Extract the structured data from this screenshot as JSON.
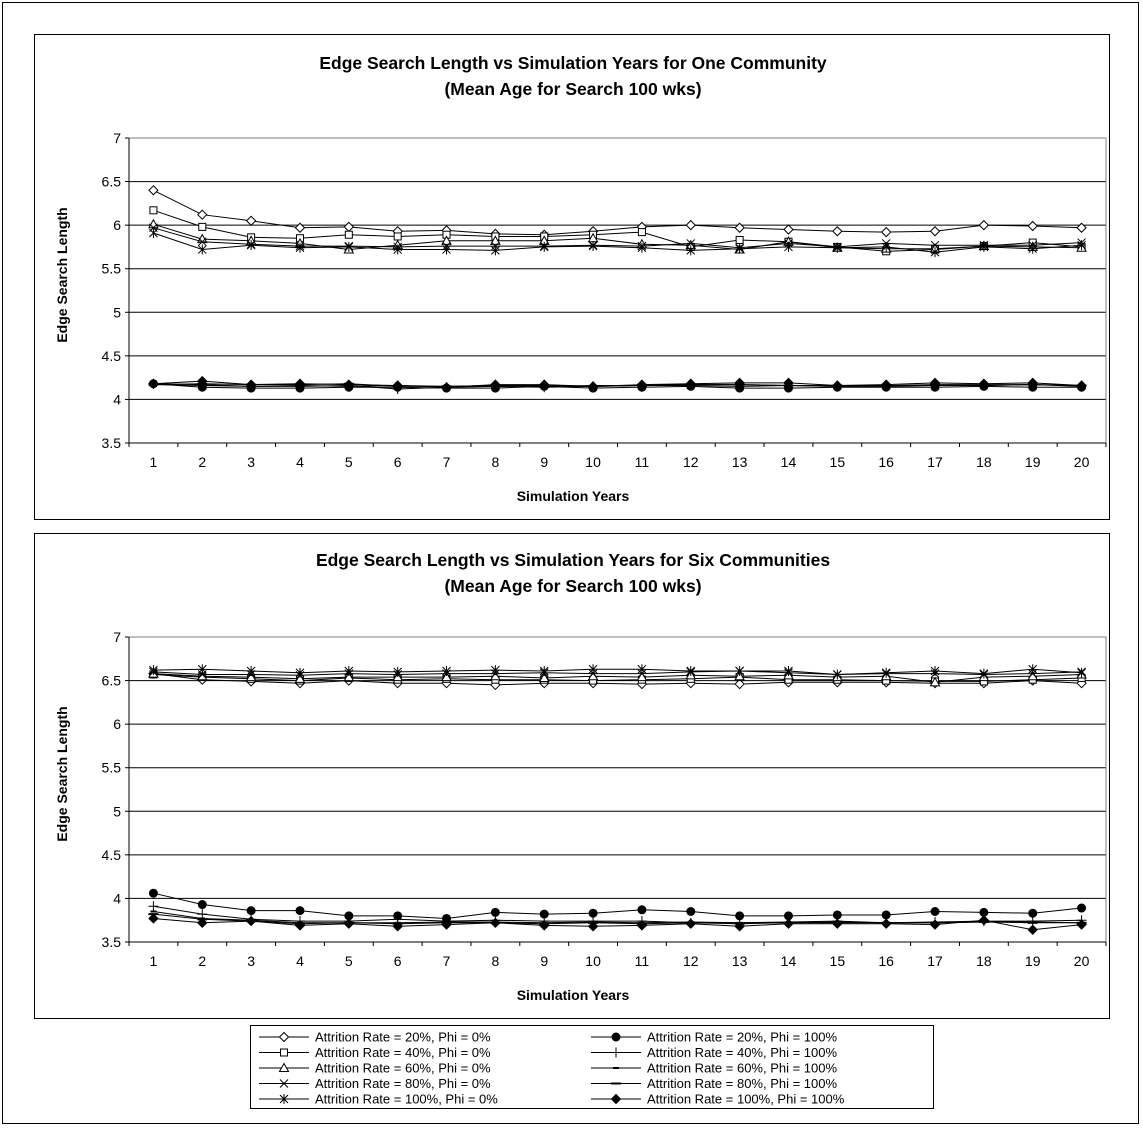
{
  "chart_data": [
    {
      "type": "line",
      "title_lines": [
        "Edge Search Length vs Simulation Years for One Community",
        "(Mean Age for Search 100 wks)"
      ],
      "xlabel": "Simulation Years",
      "ylabel": "Edge Search Length",
      "ylim": [
        3.5,
        7
      ],
      "yticks": [
        "3.5",
        "4",
        "4.5",
        "5",
        "5.5",
        "6",
        "6.5",
        "7"
      ],
      "categories": [
        "1",
        "2",
        "3",
        "4",
        "5",
        "6",
        "7",
        "8",
        "9",
        "10",
        "11",
        "12",
        "13",
        "14",
        "15",
        "16",
        "17",
        "18",
        "19",
        "20"
      ],
      "grid": "horizontal",
      "series": [
        {
          "name": "Attrition Rate = 20%, Phi = 0%",
          "marker": "diamond-open",
          "values": [
            6.4,
            6.12,
            6.05,
            5.97,
            5.98,
            5.93,
            5.94,
            5.9,
            5.89,
            5.93,
            5.98,
            6.0,
            5.97,
            5.95,
            5.93,
            5.92,
            5.93,
            6.0,
            5.99,
            5.97
          ]
        },
        {
          "name": "Attrition Rate = 40%, Phi = 0%",
          "marker": "square-open",
          "values": [
            6.17,
            5.98,
            5.86,
            5.85,
            5.89,
            5.87,
            5.89,
            5.87,
            5.87,
            5.89,
            5.92,
            5.75,
            5.83,
            5.81,
            5.75,
            5.7,
            5.72,
            5.76,
            5.8,
            5.75
          ]
        },
        {
          "name": "Attrition Rate = 60%, Phi = 0%",
          "marker": "triangle-open",
          "values": [
            6.01,
            5.84,
            5.82,
            5.79,
            5.72,
            5.77,
            5.82,
            5.82,
            5.82,
            5.85,
            5.78,
            5.77,
            5.72,
            5.81,
            5.74,
            5.73,
            5.73,
            5.76,
            5.75,
            5.74
          ]
        },
        {
          "name": "Attrition Rate = 80%, Phi = 0%",
          "marker": "x",
          "values": [
            5.97,
            5.81,
            5.78,
            5.76,
            5.76,
            5.75,
            5.76,
            5.76,
            5.76,
            5.77,
            5.76,
            5.79,
            5.74,
            5.79,
            5.75,
            5.79,
            5.77,
            5.77,
            5.77,
            5.8
          ]
        },
        {
          "name": "Attrition Rate = 100%, Phi = 0%",
          "marker": "asterisk",
          "values": [
            5.91,
            5.72,
            5.77,
            5.74,
            5.75,
            5.72,
            5.72,
            5.71,
            5.75,
            5.76,
            5.74,
            5.71,
            5.73,
            5.75,
            5.74,
            5.75,
            5.69,
            5.75,
            5.73,
            5.77
          ]
        },
        {
          "name": "Attrition Rate = 20%, Phi = 100%",
          "marker": "circle-filled",
          "values": [
            4.18,
            4.14,
            4.13,
            4.13,
            4.14,
            4.14,
            4.13,
            4.13,
            4.15,
            4.13,
            4.14,
            4.15,
            4.13,
            4.13,
            4.14,
            4.14,
            4.14,
            4.15,
            4.14,
            4.14
          ]
        },
        {
          "name": "Attrition Rate = 40%, Phi = 100%",
          "marker": "plus",
          "values": [
            4.18,
            4.17,
            4.15,
            4.15,
            4.16,
            4.12,
            4.14,
            4.15,
            4.14,
            4.15,
            4.16,
            4.16,
            4.15,
            4.16,
            4.15,
            4.15,
            4.16,
            4.16,
            4.17,
            4.16
          ]
        },
        {
          "name": "Attrition Rate = 60%, Phi = 100%",
          "marker": "dash-short",
          "values": [
            4.17,
            4.16,
            4.15,
            4.16,
            4.15,
            4.16,
            4.15,
            4.16,
            4.15,
            4.16,
            4.16,
            4.17,
            4.17,
            4.16,
            4.15,
            4.16,
            4.16,
            4.16,
            4.17,
            4.15
          ]
        },
        {
          "name": "Attrition Rate = 80%, Phi = 100%",
          "marker": "dash-long",
          "values": [
            4.17,
            4.18,
            4.17,
            4.17,
            4.18,
            4.15,
            4.15,
            4.16,
            4.16,
            4.15,
            4.16,
            4.17,
            4.17,
            4.16,
            4.16,
            4.16,
            4.17,
            4.17,
            4.17,
            4.16
          ]
        },
        {
          "name": "Attrition Rate = 100%, Phi = 100%",
          "marker": "diamond-filled",
          "values": [
            4.18,
            4.21,
            4.17,
            4.18,
            4.17,
            4.16,
            4.14,
            4.17,
            4.17,
            4.15,
            4.17,
            4.18,
            4.19,
            4.19,
            4.16,
            4.17,
            4.19,
            4.18,
            4.19,
            4.16
          ]
        }
      ]
    },
    {
      "type": "line",
      "title_lines": [
        "Edge Search Length vs Simulation Years for Six Communities",
        "(Mean Age for Search 100 wks)"
      ],
      "xlabel": "Simulation Years",
      "ylabel": "Edge Search Length",
      "ylim": [
        3.5,
        7
      ],
      "yticks": [
        "3.5",
        "4",
        "4.5",
        "5",
        "5.5",
        "6",
        "6.5",
        "7"
      ],
      "categories": [
        "1",
        "2",
        "3",
        "4",
        "5",
        "6",
        "7",
        "8",
        "9",
        "10",
        "11",
        "12",
        "13",
        "14",
        "15",
        "16",
        "17",
        "18",
        "19",
        "20"
      ],
      "grid": "horizontal",
      "series": [
        {
          "name": "Attrition Rate = 20%, Phi = 0%",
          "marker": "diamond-open",
          "values": [
            6.58,
            6.51,
            6.49,
            6.47,
            6.5,
            6.47,
            6.47,
            6.45,
            6.47,
            6.47,
            6.46,
            6.47,
            6.46,
            6.48,
            6.48,
            6.48,
            6.47,
            6.47,
            6.5,
            6.47
          ]
        },
        {
          "name": "Attrition Rate = 40%, Phi = 0%",
          "marker": "square-open",
          "values": [
            6.57,
            6.54,
            6.52,
            6.5,
            6.53,
            6.51,
            6.52,
            6.51,
            6.51,
            6.5,
            6.51,
            6.52,
            6.54,
            6.51,
            6.51,
            6.5,
            6.49,
            6.49,
            6.51,
            6.53
          ]
        },
        {
          "name": "Attrition Rate = 60%, Phi = 0%",
          "marker": "triangle-open",
          "values": [
            6.58,
            6.55,
            6.54,
            6.52,
            6.54,
            6.54,
            6.54,
            6.55,
            6.53,
            6.55,
            6.54,
            6.56,
            6.55,
            6.56,
            6.54,
            6.55,
            6.48,
            6.54,
            6.55,
            6.57
          ]
        },
        {
          "name": "Attrition Rate = 80%, Phi = 0%",
          "marker": "x",
          "values": [
            6.6,
            6.57,
            6.57,
            6.56,
            6.58,
            6.57,
            6.58,
            6.58,
            6.59,
            6.58,
            6.58,
            6.6,
            6.61,
            6.59,
            6.57,
            6.58,
            6.58,
            6.57,
            6.58,
            6.6
          ]
        },
        {
          "name": "Attrition Rate = 100%, Phi = 0%",
          "marker": "asterisk",
          "values": [
            6.62,
            6.63,
            6.61,
            6.59,
            6.61,
            6.6,
            6.61,
            6.62,
            6.61,
            6.63,
            6.63,
            6.61,
            6.61,
            6.61,
            6.57,
            6.59,
            6.61,
            6.58,
            6.63,
            6.59
          ]
        },
        {
          "name": "Attrition Rate = 20%, Phi = 100%",
          "marker": "circle-filled",
          "values": [
            4.06,
            3.93,
            3.86,
            3.86,
            3.8,
            3.8,
            3.77,
            3.84,
            3.82,
            3.83,
            3.87,
            3.85,
            3.8,
            3.8,
            3.81,
            3.81,
            3.85,
            3.84,
            3.83,
            3.89
          ]
        },
        {
          "name": "Attrition Rate = 40%, Phi = 100%",
          "marker": "plus",
          "values": [
            3.91,
            3.82,
            3.76,
            3.74,
            3.74,
            3.76,
            3.74,
            3.75,
            3.74,
            3.74,
            3.74,
            3.72,
            3.72,
            3.73,
            3.74,
            3.72,
            3.73,
            3.74,
            3.74,
            3.75
          ]
        },
        {
          "name": "Attrition Rate = 60%, Phi = 100%",
          "marker": "dash-short",
          "values": [
            3.85,
            3.77,
            3.75,
            3.72,
            3.72,
            3.72,
            3.73,
            3.73,
            3.72,
            3.73,
            3.72,
            3.73,
            3.72,
            3.72,
            3.72,
            3.72,
            3.72,
            3.73,
            3.73,
            3.72
          ]
        },
        {
          "name": "Attrition Rate = 80%, Phi = 100%",
          "marker": "dash-long",
          "values": [
            3.82,
            3.76,
            3.74,
            3.71,
            3.72,
            3.71,
            3.72,
            3.72,
            3.71,
            3.72,
            3.71,
            3.72,
            3.71,
            3.72,
            3.73,
            3.72,
            3.72,
            3.73,
            3.72,
            3.72
          ]
        },
        {
          "name": "Attrition Rate = 100%, Phi = 100%",
          "marker": "diamond-filled",
          "values": [
            3.77,
            3.72,
            3.74,
            3.69,
            3.71,
            3.68,
            3.7,
            3.72,
            3.69,
            3.68,
            3.69,
            3.71,
            3.68,
            3.71,
            3.71,
            3.71,
            3.7,
            3.75,
            3.64,
            3.7
          ]
        }
      ]
    }
  ],
  "legend": {
    "columns": 2,
    "entries": [
      {
        "series_index": 0,
        "label": "Attrition Rate = 20%, Phi = 0%"
      },
      {
        "series_index": 5,
        "label": "Attrition Rate = 20%, Phi = 100%"
      },
      {
        "series_index": 1,
        "label": "Attrition Rate = 40%, Phi = 0%"
      },
      {
        "series_index": 6,
        "label": "Attrition Rate = 40%, Phi = 100%"
      },
      {
        "series_index": 2,
        "label": "Attrition Rate = 60%, Phi = 0%"
      },
      {
        "series_index": 7,
        "label": "Attrition Rate = 60%, Phi = 100%"
      },
      {
        "series_index": 3,
        "label": "Attrition Rate = 80%, Phi = 0%"
      },
      {
        "series_index": 8,
        "label": "Attrition Rate = 80%, Phi = 100%"
      },
      {
        "series_index": 4,
        "label": "Attrition Rate = 100%, Phi = 0%"
      },
      {
        "series_index": 9,
        "label": "Attrition Rate = 100%, Phi = 100%"
      }
    ]
  }
}
